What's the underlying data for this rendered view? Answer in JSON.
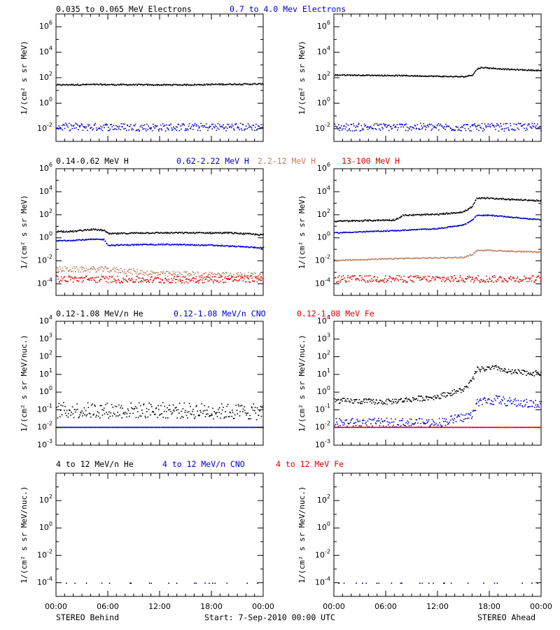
{
  "figure": {
    "title_left": "STEREO Behind",
    "title_right": "STEREO Ahead",
    "start_label": "Start:  7-Sep-2010 00:00 UTC",
    "xticks": [
      "00:00",
      "06:00",
      "12:00",
      "18:00",
      "00:00"
    ]
  },
  "rows": [
    {
      "headers": [
        {
          "text": "0.035 to 0.065 MeV Electrons",
          "color": "#000000"
        },
        {
          "text": "0.7 to 4.0 Mev Electrons",
          "color": "#0000cc"
        }
      ],
      "ylabel": "1/(cm² s sr MeV)"
    },
    {
      "headers": [
        {
          "text": "0.14-0.62 MeV H",
          "color": "#000000"
        },
        {
          "text": "0.62-2.22 MeV H",
          "color": "#0000cc"
        },
        {
          "text": "2.2-12 MeV H",
          "color": "#c08060"
        },
        {
          "text": "13-100 MeV H",
          "color": "#dd0000"
        }
      ],
      "ylabel": "1/(cm² s sr MeV)"
    },
    {
      "headers": [
        {
          "text": "0.12-1.08 MeV/n He",
          "color": "#000000"
        },
        {
          "text": "0.12-1.08 MeV/n CNO",
          "color": "#0000cc"
        },
        {
          "text": "0.12-1.08 MeV Fe",
          "color": "#dd0000"
        }
      ],
      "ylabel": "1/(cm² s sr MeV/nuc.)"
    },
    {
      "headers": [
        {
          "text": "4 to 12 MeV/n He",
          "color": "#000000"
        },
        {
          "text": "4 to 12 MeV/n CNO",
          "color": "#0000cc"
        },
        {
          "text": "4 to 12 MeV Fe",
          "color": "#dd0000"
        }
      ],
      "ylabel": "1/(cm² s sr MeV/nuc.)"
    }
  ],
  "chart_data": [
    {
      "type": "scatter",
      "panel": "electrons-behind",
      "ylabel": "1/(cm² s sr MeV)",
      "yscale": "log",
      "ylim_exp": [
        -3,
        7
      ],
      "ytick_exps": [
        -2,
        0,
        2,
        4,
        6
      ],
      "xlim_hours": [
        0,
        24
      ],
      "series": [
        {
          "color": "#000000",
          "points": [
            [
              0,
              30
            ],
            [
              4,
              32
            ],
            [
              8,
              31
            ],
            [
              12,
              30
            ],
            [
              16,
              31
            ],
            [
              20,
              34
            ],
            [
              24,
              35
            ]
          ],
          "scatter": 0.05
        },
        {
          "color": "#0000cc",
          "points": [
            [
              0,
              0.015
            ],
            [
              6,
              0.015
            ],
            [
              12,
              0.014
            ],
            [
              18,
              0.015
            ],
            [
              24,
              0.015
            ]
          ],
          "scatter": 0.3
        }
      ]
    },
    {
      "type": "scatter",
      "panel": "electrons-ahead",
      "ylabel": "1/(cm² s sr MeV)",
      "yscale": "log",
      "ylim_exp": [
        -3,
        7
      ],
      "ytick_exps": [
        -2,
        0,
        2,
        4,
        6
      ],
      "xlim_hours": [
        0,
        24
      ],
      "series": [
        {
          "color": "#000000",
          "points": [
            [
              0,
              180
            ],
            [
              8,
              160
            ],
            [
              15,
              130
            ],
            [
              16,
              180
            ],
            [
              16.5,
              500
            ],
            [
              17,
              700
            ],
            [
              20,
              500
            ],
            [
              24,
              400
            ]
          ],
          "scatter": 0.04
        },
        {
          "color": "#0000cc",
          "points": [
            [
              0,
              0.014
            ],
            [
              8,
              0.015
            ],
            [
              16,
              0.014
            ],
            [
              24,
              0.015
            ]
          ],
          "scatter": 0.3
        }
      ]
    },
    {
      "type": "scatter",
      "panel": "protons-behind",
      "ylabel": "1/(cm² s sr MeV)",
      "yscale": "log",
      "ylim_exp": [
        -5,
        6
      ],
      "ytick_exps": [
        -4,
        -2,
        0,
        2,
        4,
        6
      ],
      "xlim_hours": [
        0,
        24
      ],
      "series": [
        {
          "color": "#000000",
          "points": [
            [
              0,
              4
            ],
            [
              2,
              4
            ],
            [
              4,
              6
            ],
            [
              5.5,
              5
            ],
            [
              6,
              2.5
            ],
            [
              10,
              3
            ],
            [
              16,
              3
            ],
            [
              20,
              3
            ],
            [
              24,
              2
            ]
          ],
          "scatter": 0.06
        },
        {
          "color": "#0000cc",
          "points": [
            [
              0,
              0.6
            ],
            [
              4,
              0.8
            ],
            [
              5.5,
              0.8
            ],
            [
              6,
              0.25
            ],
            [
              12,
              0.3
            ],
            [
              18,
              0.25
            ],
            [
              24,
              0.15
            ]
          ],
          "scatter": 0.05
        },
        {
          "color": "#c08060",
          "points": [
            [
              0,
              0.002
            ],
            [
              6,
              0.002
            ],
            [
              12,
              0.0008
            ],
            [
              18,
              0.0007
            ],
            [
              24,
              0.0006
            ]
          ],
          "scatter": 0.25
        },
        {
          "color": "#dd0000",
          "points": [
            [
              0,
              0.0003
            ],
            [
              12,
              0.00025
            ],
            [
              24,
              0.0003
            ]
          ],
          "scatter": 0.3
        }
      ]
    },
    {
      "type": "scatter",
      "panel": "protons-ahead",
      "ylabel": "1/(cm² s sr MeV)",
      "yscale": "log",
      "ylim_exp": [
        -5,
        6
      ],
      "ytick_exps": [
        -4,
        -2,
        0,
        2,
        4,
        6
      ],
      "xlim_hours": [
        0,
        24
      ],
      "series": [
        {
          "color": "#000000",
          "points": [
            [
              0,
              30
            ],
            [
              7,
              40
            ],
            [
              8,
              100
            ],
            [
              12,
              120
            ],
            [
              15,
              200
            ],
            [
              16,
              600
            ],
            [
              16.5,
              3000
            ],
            [
              18,
              3000
            ],
            [
              24,
              1800
            ]
          ],
          "scatter": 0.06
        },
        {
          "color": "#0000cc",
          "points": [
            [
              0,
              3
            ],
            [
              8,
              5
            ],
            [
              12,
              7
            ],
            [
              15,
              15
            ],
            [
              16,
              40
            ],
            [
              16.5,
              100
            ],
            [
              18,
              100
            ],
            [
              24,
              40
            ]
          ],
          "scatter": 0.04
        },
        {
          "color": "#c08060",
          "points": [
            [
              0,
              0.012
            ],
            [
              8,
              0.018
            ],
            [
              15,
              0.022
            ],
            [
              16,
              0.04
            ],
            [
              16.5,
              0.09
            ],
            [
              18,
              0.09
            ],
            [
              24,
              0.06
            ]
          ],
          "scatter": 0.05
        },
        {
          "color": "#dd0000",
          "points": [
            [
              0,
              0.0003
            ],
            [
              12,
              0.0003
            ],
            [
              24,
              0.0003
            ]
          ],
          "scatter": 0.3
        }
      ]
    },
    {
      "type": "scatter",
      "panel": "heavy-low-behind",
      "ylabel": "1/(cm² s sr MeV/nuc.)",
      "yscale": "log",
      "ylim_exp": [
        -3,
        4
      ],
      "ytick_exps": [
        -3,
        -2,
        -1,
        0,
        1,
        2,
        3,
        4
      ],
      "xlim_hours": [
        0,
        24
      ],
      "series": [
        {
          "color": "#000000",
          "points": [
            [
              0,
              0.1
            ],
            [
              12,
              0.1
            ],
            [
              24,
              0.08
            ]
          ],
          "scatter": 0.45
        },
        {
          "color": "#0000cc",
          "points": [
            [
              0,
              0.011
            ],
            [
              24,
              0.011
            ]
          ],
          "scatter": 0.0
        }
      ]
    },
    {
      "type": "scatter",
      "panel": "heavy-low-ahead",
      "ylabel": "1/(cm² s sr MeV/nuc.)",
      "yscale": "log",
      "ylim_exp": [
        -3,
        4
      ],
      "ytick_exps": [
        -3,
        -2,
        -1,
        0,
        1,
        2,
        3,
        4
      ],
      "xlim_hours": [
        0,
        24
      ],
      "series": [
        {
          "color": "#000000",
          "points": [
            [
              0,
              0.35
            ],
            [
              6,
              0.3
            ],
            [
              12,
              0.6
            ],
            [
              15,
              1.5
            ],
            [
              16,
              5
            ],
            [
              16.5,
              20
            ],
            [
              19,
              25
            ],
            [
              20,
              15
            ],
            [
              24,
              12
            ]
          ],
          "scatter": 0.15
        },
        {
          "color": "#0000cc",
          "points": [
            [
              0,
              0.02
            ],
            [
              12,
              0.02
            ],
            [
              16,
              0.05
            ],
            [
              16.5,
              0.3
            ],
            [
              19,
              0.4
            ],
            [
              20,
              0.3
            ],
            [
              24,
              0.2
            ]
          ],
          "scatter": 0.25
        },
        {
          "color": "#dd0000",
          "points": [
            [
              0,
              0.011
            ],
            [
              24,
              0.011
            ]
          ],
          "scatter": 0.0
        }
      ]
    },
    {
      "type": "scatter",
      "panel": "heavy-high-behind",
      "ylabel": "1/(cm² s sr MeV/nuc.)",
      "yscale": "log",
      "ylim_exp": [
        -5,
        4
      ],
      "ytick_exps": [
        -4,
        -2,
        0,
        2
      ],
      "xlim_hours": [
        0,
        24
      ],
      "series": [
        {
          "color": "#000000",
          "points": [
            [
              0,
              0.0001
            ],
            [
              24,
              0.0001
            ]
          ],
          "scatter": 0.0,
          "sparse": true
        },
        {
          "color": "#0000cc",
          "points": [
            [
              0,
              0.0001
            ],
            [
              24,
              0.0001
            ]
          ],
          "scatter": 0.0,
          "sparse": true
        }
      ]
    },
    {
      "type": "scatter",
      "panel": "heavy-high-ahead",
      "ylabel": "1/(cm² s sr MeV/nuc.)",
      "yscale": "log",
      "ylim_exp": [
        -5,
        4
      ],
      "ytick_exps": [
        -4,
        -2,
        0,
        2
      ],
      "xlim_hours": [
        0,
        24
      ],
      "series": [
        {
          "color": "#000000",
          "points": [
            [
              0,
              0.0001
            ],
            [
              24,
              0.0001
            ]
          ],
          "scatter": 0.0,
          "sparse": true
        },
        {
          "color": "#0000cc",
          "points": [
            [
              0,
              0.0001
            ],
            [
              24,
              0.0001
            ]
          ],
          "scatter": 0.0,
          "sparse": true
        }
      ]
    }
  ]
}
